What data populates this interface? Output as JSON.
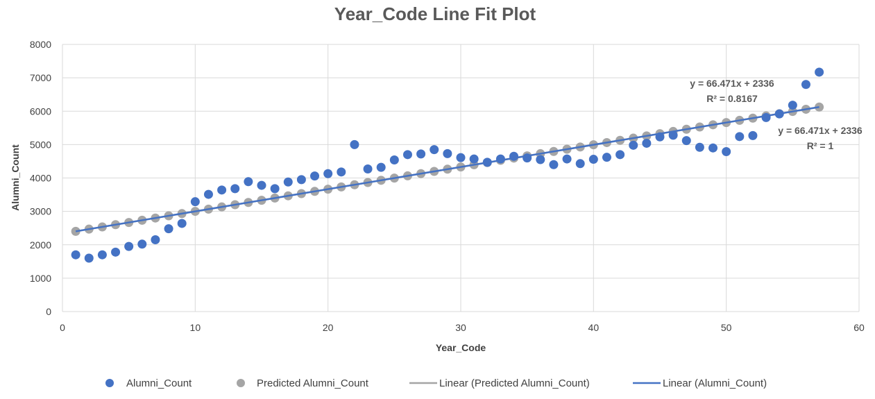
{
  "chart_data": {
    "type": "scatter",
    "title": "Year_Code Line Fit  Plot",
    "xlabel": "Year_Code",
    "ylabel": "Alumni_Count",
    "xlim": [
      0,
      60
    ],
    "ylim": [
      0,
      8000
    ],
    "x_ticks": [
      "0",
      "10",
      "20",
      "30",
      "40",
      "50",
      "60"
    ],
    "y_ticks": [
      "0",
      "1000",
      "2000",
      "3000",
      "4000",
      "5000",
      "6000",
      "7000",
      "8000"
    ],
    "grid": true,
    "legend_position": "bottom",
    "series": [
      {
        "name": "Alumni_Count",
        "kind": "markers",
        "color": "#4472c4",
        "x": [
          1,
          2,
          3,
          4,
          5,
          6,
          7,
          8,
          9,
          10,
          11,
          12,
          13,
          14,
          15,
          16,
          17,
          18,
          19,
          20,
          21,
          22,
          23,
          24,
          25,
          26,
          27,
          28,
          29,
          30,
          31,
          32,
          33,
          34,
          35,
          36,
          37,
          38,
          39,
          40,
          41,
          42,
          43,
          44,
          45,
          46,
          47,
          48,
          49,
          50,
          51,
          52,
          53,
          54,
          55,
          56,
          57
        ],
        "y": [
          1700,
          1600,
          1700,
          1780,
          1950,
          2020,
          2150,
          2480,
          2640,
          3290,
          3510,
          3640,
          3680,
          3890,
          3780,
          3680,
          3880,
          3950,
          4060,
          4130,
          4180,
          5000,
          4270,
          4320,
          4540,
          4700,
          4720,
          4850,
          4730,
          4610,
          4570,
          4470,
          4570,
          4650,
          4600,
          4550,
          4400,
          4570,
          4430,
          4560,
          4620,
          4700,
          4980,
          5040,
          5230,
          5280,
          5120,
          4920,
          4900,
          4790,
          5240,
          5270,
          5810,
          5920,
          6180,
          6800,
          7170
        ]
      },
      {
        "name": "Predicted Alumni_Count",
        "kind": "markers",
        "color": "#a5a5a5",
        "x": [
          1,
          2,
          3,
          4,
          5,
          6,
          7,
          8,
          9,
          10,
          11,
          12,
          13,
          14,
          15,
          16,
          17,
          18,
          19,
          20,
          21,
          22,
          23,
          24,
          25,
          26,
          27,
          28,
          29,
          30,
          31,
          32,
          33,
          34,
          35,
          36,
          37,
          38,
          39,
          40,
          41,
          42,
          43,
          44,
          45,
          46,
          47,
          48,
          49,
          50,
          51,
          52,
          53,
          54,
          55,
          56,
          57
        ],
        "y": [
          2402,
          2469,
          2535,
          2602,
          2668,
          2735,
          2801,
          2868,
          2934,
          3001,
          3067,
          3134,
          3200,
          3267,
          3333,
          3400,
          3466,
          3533,
          3599,
          3665,
          3732,
          3798,
          3865,
          3931,
          3998,
          4064,
          4131,
          4197,
          4264,
          4330,
          4397,
          4463,
          4530,
          4596,
          4662,
          4729,
          4795,
          4862,
          4928,
          4995,
          5061,
          5128,
          5194,
          5261,
          5327,
          5394,
          5460,
          5527,
          5593,
          5660,
          5726,
          5792,
          5859,
          5925,
          5992,
          6058,
          6125
        ]
      },
      {
        "name": "Linear (Predicted Alumni_Count)",
        "kind": "trendline",
        "color": "#a5a5a5",
        "x": [
          1,
          57
        ],
        "y": [
          2402,
          6125
        ]
      },
      {
        "name": "Linear (Alumni_Count)",
        "kind": "trendline",
        "color": "#4472c4",
        "x": [
          1,
          57
        ],
        "y": [
          2402,
          6125
        ]
      }
    ],
    "annotations": [
      {
        "line1": "y = 66.471x + 2336",
        "line2": "R² = 0.8167"
      },
      {
        "line1": "y = 66.471x + 2336",
        "line2": "R² = 1"
      }
    ]
  }
}
